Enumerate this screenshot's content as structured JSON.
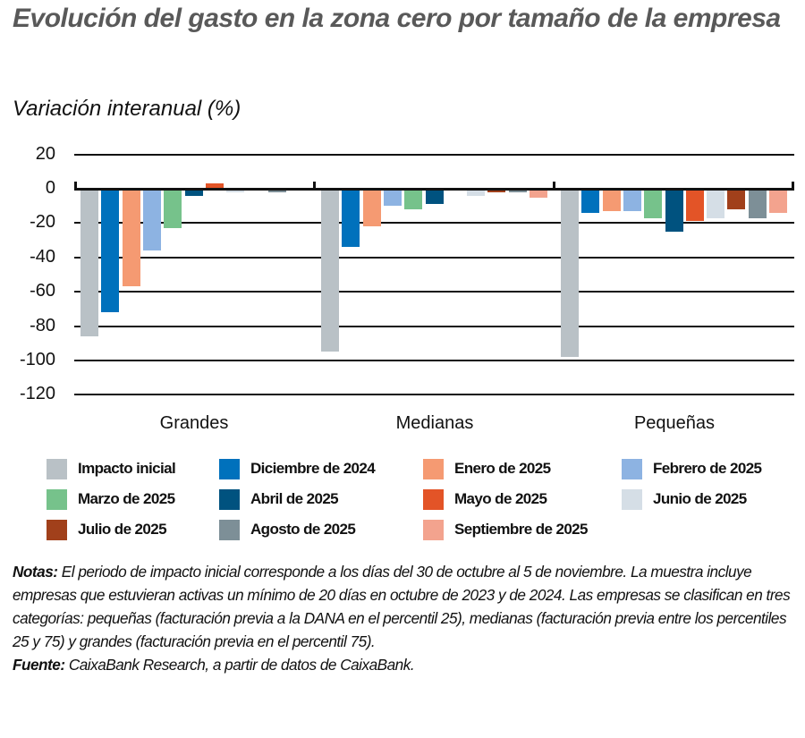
{
  "header": {
    "title": "Evolución del gasto en la zona cero por tamaño de la empresa",
    "subtitle": "Variación interanual (%)"
  },
  "axis": {
    "y_ticks": [
      "20",
      "0",
      "-20",
      "-40",
      "-60",
      "-80",
      "-100",
      "-120"
    ]
  },
  "categories_labels": [
    "Grandes",
    "Medianas",
    "Pequeñas"
  ],
  "legend": [
    {
      "label": "Impacto inicial",
      "color": "#b9c1c6"
    },
    {
      "label": "Diciembre de 2024",
      "color": "#0071bc"
    },
    {
      "label": "Enero de 2025",
      "color": "#f59a72"
    },
    {
      "label": "Febrero de 2025",
      "color": "#8db3e2"
    },
    {
      "label": "Marzo de 2025",
      "color": "#76c28b"
    },
    {
      "label": "Abril de 2025",
      "color": "#00527f"
    },
    {
      "label": "Mayo de 2025",
      "color": "#e35427"
    },
    {
      "label": "Junio de 2025",
      "color": "#d5dee6"
    },
    {
      "label": "Julio de 2025",
      "color": "#a1401b"
    },
    {
      "label": "Agosto de 2025",
      "color": "#7d8f97"
    },
    {
      "label": "Septiembre de 2025",
      "color": "#f3a38e"
    }
  ],
  "notes": {
    "notes_label": "Notas:",
    "notes_text": " El periodo de impacto inicial corresponde a los días del 30 de octubre al 5 de noviembre. La muestra incluye empresas que estuvieran activas un mínimo de 20 días en octubre de 2023 y de 2024. Las empresas se clasifican en tres categorías: pequeñas (facturación previa a la DANA en el percentil 25), medianas (facturación previa entre los percentiles 25 y 75) y grandes (facturación previa en el percentil 75).",
    "source_label": "Fuente:",
    "source_text": " CaixaBank Research, a partir de datos de CaixaBank."
  },
  "chart_data": {
    "type": "bar",
    "title": "Evolución del gasto en la zona cero por tamaño de la empresa",
    "subtitle": "Variación interanual (%)",
    "xlabel": "",
    "ylabel": "",
    "ylim": [
      -120,
      20
    ],
    "yticks": [
      20,
      0,
      -20,
      -40,
      -60,
      -80,
      -100,
      -120
    ],
    "grid": true,
    "legend_position": "bottom",
    "categories": [
      "Grandes",
      "Medianas",
      "Pequeñas"
    ],
    "series": [
      {
        "name": "Impacto inicial",
        "color": "#b9c1c6",
        "values": [
          -86,
          -95,
          -98
        ]
      },
      {
        "name": "Diciembre de 2024",
        "color": "#0071bc",
        "values": [
          -72,
          -34,
          -14
        ]
      },
      {
        "name": "Enero de 2025",
        "color": "#f59a72",
        "values": [
          -57,
          -22,
          -13
        ]
      },
      {
        "name": "Febrero de 2025",
        "color": "#8db3e2",
        "values": [
          -36,
          -10,
          -13
        ]
      },
      {
        "name": "Marzo de 2025",
        "color": "#76c28b",
        "values": [
          -23,
          -12,
          -17
        ]
      },
      {
        "name": "Abril de 2025",
        "color": "#00527f",
        "values": [
          -4,
          -9,
          -25
        ]
      },
      {
        "name": "Mayo de 2025",
        "color": "#e35427",
        "values": [
          3,
          -1,
          -19
        ]
      },
      {
        "name": "Junio de 2025",
        "color": "#d5dee6",
        "values": [
          -2,
          -4,
          -17
        ]
      },
      {
        "name": "Julio de 2025",
        "color": "#a1401b",
        "values": [
          -1,
          -2,
          -12
        ]
      },
      {
        "name": "Agosto de 2025",
        "color": "#7d8f97",
        "values": [
          -2,
          -2,
          -17
        ]
      },
      {
        "name": "Septiembre de 2025",
        "color": "#f3a38e",
        "values": [
          -1,
          -5,
          -14
        ]
      }
    ]
  }
}
